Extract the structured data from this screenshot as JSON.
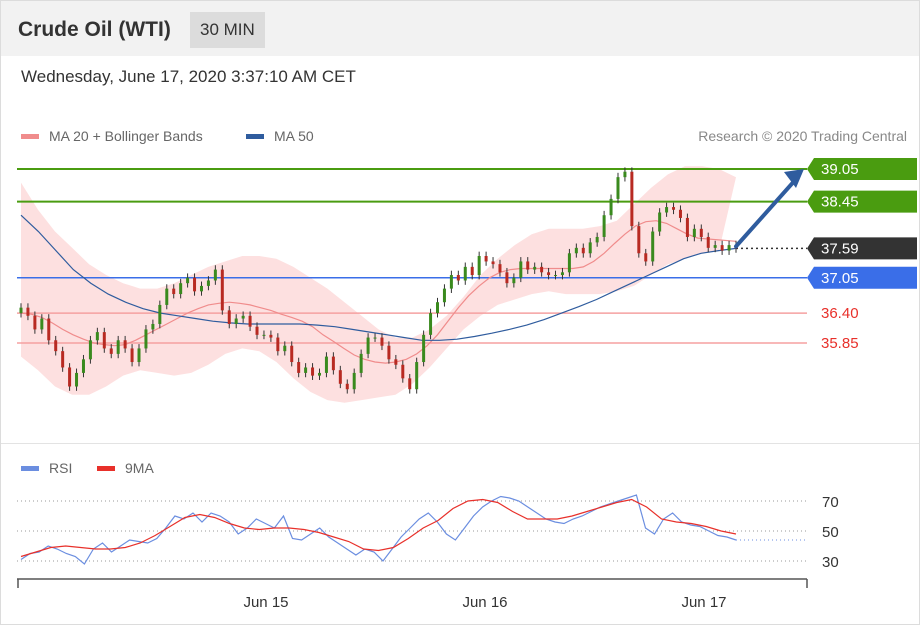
{
  "header": {
    "title": "Crude Oil (WTI)",
    "interval": "30 MIN"
  },
  "datetime": "Wednesday, June 17, 2020 3:37:10 AM CET",
  "legend": {
    "ma20": "MA 20 + Bollinger Bands",
    "ma50": "MA 50",
    "rsi": "RSI",
    "ma9": "9MA"
  },
  "credit": "Research © 2020 Trading Central",
  "colors": {
    "ma20": "#f08c8c",
    "ma50": "#2f5c9e",
    "bollinger_fill": "#fde0e0",
    "resistance": "#4a9c10",
    "support": "#3a6ee8",
    "support_minor": "#f5a0a0",
    "support_minor_text": "#e8302a",
    "current": "#333333",
    "rsi": "#6b8ee0",
    "rsi_ma": "#e8302a",
    "candle_up": "#3a8a1e",
    "candle_down": "#b82a22"
  },
  "chart_data": [
    {
      "type": "line",
      "title": "Crude Oil (WTI)",
      "xlabel": "",
      "ylabel": "",
      "ylim": [
        35.3,
        39.2
      ],
      "x_tick_labels": [
        "Jun 15",
        "Jun 16",
        "Jun 17"
      ],
      "price_levels": [
        {
          "label": "39.05",
          "value": 39.05,
          "kind": "resistance"
        },
        {
          "label": "38.45",
          "value": 38.45,
          "kind": "resistance"
        },
        {
          "label": "37.59",
          "value": 37.59,
          "kind": "current"
        },
        {
          "label": "37.05",
          "value": 37.05,
          "kind": "support"
        },
        {
          "label": "36.40",
          "value": 36.4,
          "kind": "support_minor"
        },
        {
          "label": "35.85",
          "value": 35.85,
          "kind": "support_minor"
        }
      ],
      "arrow": {
        "direction": "up",
        "from": 37.59,
        "to": 39.05
      },
      "close": [
        36.5,
        36.35,
        36.1,
        36.3,
        35.9,
        35.7,
        35.4,
        35.05,
        35.3,
        35.55,
        35.9,
        36.05,
        35.75,
        35.65,
        35.9,
        35.75,
        35.5,
        35.75,
        36.1,
        36.2,
        36.55,
        36.85,
        36.75,
        36.95,
        37.05,
        36.8,
        36.9,
        37.0,
        37.2,
        36.45,
        36.2,
        36.3,
        36.35,
        36.15,
        36.0,
        36.0,
        35.95,
        35.7,
        35.8,
        35.5,
        35.3,
        35.4,
        35.25,
        35.3,
        35.6,
        35.35,
        35.1,
        35.0,
        35.3,
        35.65,
        35.95,
        35.95,
        35.8,
        35.55,
        35.45,
        35.2,
        35.0,
        35.5,
        36.0,
        36.4,
        36.6,
        36.85,
        37.1,
        37.0,
        37.25,
        37.1,
        37.45,
        37.35,
        37.3,
        37.15,
        36.95,
        37.05,
        37.35,
        37.2,
        37.25,
        37.15,
        37.1,
        37.1,
        37.15,
        37.5,
        37.6,
        37.5,
        37.7,
        37.8,
        38.2,
        38.5,
        38.9,
        39.0,
        38.0,
        37.5,
        37.35,
        37.9,
        38.25,
        38.35,
        38.3,
        38.15,
        37.8,
        37.95,
        37.8,
        37.6,
        37.65,
        37.55,
        37.65,
        37.59
      ],
      "ma20": [
        36.4,
        36.38,
        36.32,
        36.22,
        36.1,
        36.0,
        35.92,
        35.85,
        35.82,
        35.8,
        35.82,
        35.9,
        36.0,
        36.1,
        36.2,
        36.3,
        36.4,
        36.48,
        36.55,
        36.58,
        36.6,
        36.58,
        36.55,
        36.5,
        36.45,
        36.38,
        36.32,
        36.25,
        36.15,
        36.0,
        35.88,
        35.75,
        35.63,
        35.55,
        35.5,
        35.48,
        35.5,
        35.55,
        35.65,
        35.8,
        36.0,
        36.25,
        36.5,
        36.72,
        36.9,
        37.05,
        37.15,
        37.2,
        37.22,
        37.22,
        37.22,
        37.22,
        37.22,
        37.22,
        37.25,
        37.35,
        37.5,
        37.68,
        37.85,
        38.0,
        38.08,
        38.1,
        38.05,
        37.95,
        37.85,
        37.78,
        37.72
      ],
      "ma20_x": [
        0,
        1.5,
        3,
        4.5,
        6,
        7.5,
        9,
        10.5,
        12,
        13.5,
        15,
        16.5,
        18,
        19.5,
        21,
        22.5,
        24,
        25.5,
        27,
        28.5,
        30,
        31.5,
        33,
        34.5,
        36,
        37.5,
        39,
        40.5,
        42,
        43.5,
        45,
        46.5,
        48,
        49.5,
        51,
        52.5,
        54,
        55.5,
        57,
        58.5,
        60,
        61.5,
        63,
        64.5,
        66,
        67.5,
        69,
        70.5,
        72,
        73.5,
        75,
        76.5,
        78,
        79.5,
        81,
        82.5,
        84,
        85.5,
        87,
        88.5,
        90,
        91.5,
        93,
        94.5,
        96,
        97.5,
        103
      ],
      "ma50": [
        38.2,
        37.9,
        37.55,
        37.2,
        36.95,
        36.75,
        36.6,
        36.48,
        36.4,
        36.35,
        36.3,
        36.25,
        36.22,
        36.2,
        36.2,
        36.2,
        36.2,
        36.18,
        36.15,
        36.1,
        36.05,
        36.0,
        35.95,
        35.9,
        35.9,
        35.92,
        35.97,
        36.03,
        36.1,
        36.18,
        36.28,
        36.4,
        36.52,
        36.65,
        36.8,
        36.95,
        37.1,
        37.25,
        37.4,
        37.5,
        37.55,
        37.59
      ],
      "bollinger_upper": [
        38.8,
        38.3,
        37.9,
        37.6,
        37.3,
        37.1,
        36.95,
        36.85,
        36.85,
        36.95,
        37.1,
        37.25,
        37.35,
        37.45,
        37.45,
        37.4,
        37.25,
        37.05,
        36.85,
        36.6,
        36.35,
        36.1,
        35.95,
        35.95,
        36.1,
        36.35,
        36.7,
        37.1,
        37.4,
        37.65,
        37.85,
        37.95,
        37.95,
        37.95,
        38.0,
        38.1,
        38.4,
        38.7,
        38.95,
        39.1,
        39.1,
        39.05,
        38.9
      ],
      "bollinger_lower": [
        35.6,
        35.35,
        35.05,
        34.9,
        34.9,
        35.05,
        35.25,
        35.35,
        35.3,
        35.25,
        35.3,
        35.45,
        35.65,
        35.75,
        35.7,
        35.5,
        35.2,
        34.95,
        34.8,
        34.75,
        34.8,
        34.85,
        34.9,
        35.1,
        35.4,
        35.75,
        36.1,
        36.35,
        36.55,
        36.65,
        36.75,
        36.8,
        36.75,
        36.75,
        36.75,
        36.8,
        36.9,
        37.1,
        37.3,
        37.4,
        37.5,
        37.55
      ]
    },
    {
      "type": "line",
      "title": "RSI",
      "xlabel": "",
      "ylabel": "",
      "ylim": [
        20,
        80
      ],
      "y_ticks": [
        30,
        50,
        70
      ],
      "series": [
        {
          "name": "RSI",
          "values": [
            31,
            35,
            36,
            40,
            38,
            35,
            33,
            28,
            38,
            42,
            36,
            40,
            44,
            43,
            42,
            45,
            52,
            60,
            58,
            62,
            56,
            62,
            60,
            56,
            48,
            52,
            58,
            55,
            52,
            60,
            45,
            44,
            48,
            52,
            46,
            42,
            38,
            34,
            38,
            36,
            30,
            38,
            46,
            52,
            58,
            62,
            56,
            48,
            44,
            52,
            60,
            66,
            70,
            73,
            72,
            70,
            66,
            62,
            58,
            56,
            55,
            58,
            60,
            63,
            66,
            68,
            70,
            72,
            74,
            52,
            48,
            58,
            62,
            56,
            54,
            53,
            50,
            47,
            46,
            44
          ]
        },
        {
          "name": "9MA",
          "values": [
            33,
            36,
            39,
            40,
            39,
            38,
            38,
            39,
            42,
            47,
            53,
            59,
            61,
            59,
            55,
            52,
            51,
            52,
            52,
            51,
            49,
            46,
            43,
            38,
            37,
            39,
            45,
            52,
            57,
            65,
            70,
            71,
            69,
            63,
            58,
            58,
            58,
            60,
            63,
            66,
            69,
            71,
            66,
            58,
            56,
            55,
            53,
            50,
            48
          ]
        }
      ]
    }
  ]
}
